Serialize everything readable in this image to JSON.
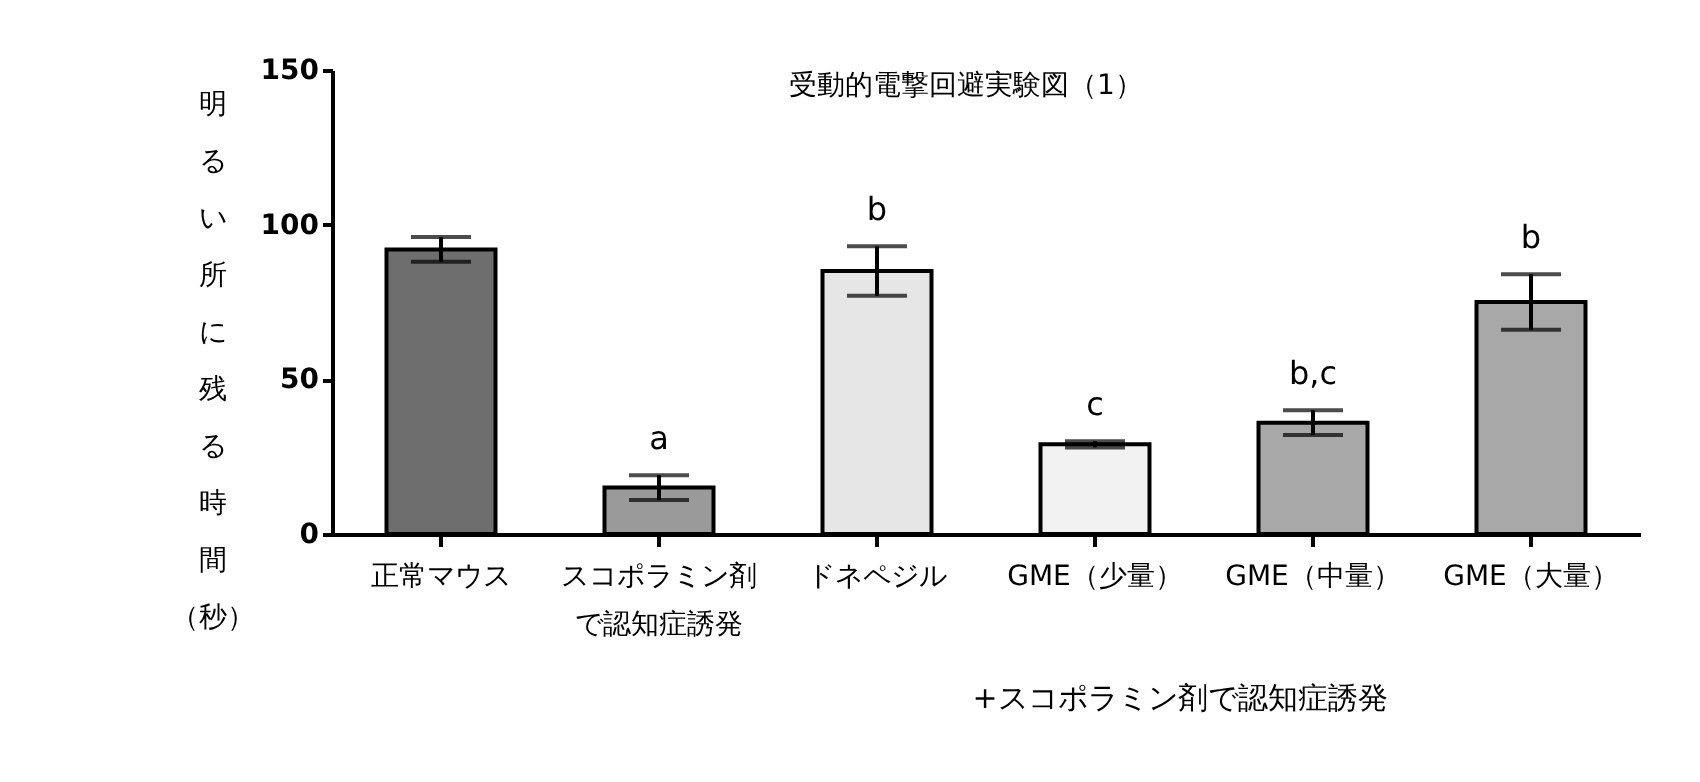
{
  "chart_data": {
    "type": "bar",
    "title": "受動的電撃回避実験図（1）",
    "ylabel": "明るい所に残る時間（秒）",
    "categories": [
      "正常マウス",
      "スコポラミン剤で認知症誘発",
      "ドネペジル",
      "GME（少量）",
      "GME（中量）",
      "GME（大量）"
    ],
    "values": [
      92,
      15,
      85,
      29,
      36,
      75
    ],
    "errors": [
      4,
      4,
      8,
      1,
      4,
      9
    ],
    "colors": [
      "#6e6e6e",
      "#9a9a9a",
      "#e6e6e6",
      "#f2f2f2",
      "#a8a8a8",
      "#a8a8a8"
    ],
    "ylim": [
      0,
      150
    ],
    "yticks": [
      0,
      50,
      100,
      150
    ],
    "grid": false,
    "annotations": [
      {
        "text": "a",
        "x": "スコポラミン剤で認知症誘発",
        "y": 19
      },
      {
        "text": "b",
        "x": "ドネペジル",
        "y": 93
      },
      {
        "text": "c",
        "x": "GME（少量）",
        "y": 30
      },
      {
        "text": "b,c",
        "x": "GME（中量）",
        "y": 40
      },
      {
        "text": "b",
        "x": "GME（大量）",
        "y": 84
      },
      "+スコポラミン剤で認知症誘発"
    ]
  }
}
